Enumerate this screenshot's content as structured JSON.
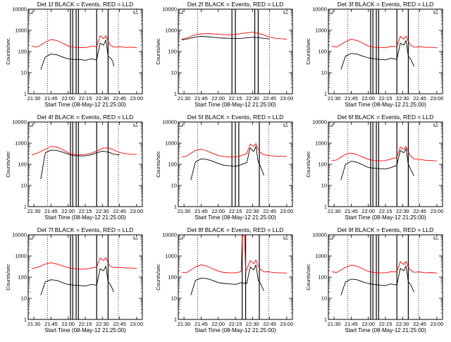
{
  "shared": {
    "xlabel": "Start Time (08-May-12 21:25:00)",
    "ylabel": "Counts/sec",
    "x_tick_labels": [
      "21:30",
      "21:45",
      "22:00",
      "22:15",
      "22:30",
      "22:45",
      "23:00"
    ],
    "y_tick_labels": [
      "1",
      "10",
      "100",
      "1000",
      "10000"
    ],
    "colors": {
      "events": "#000000",
      "lld": "#ff0000"
    }
  },
  "chart_data": [
    {
      "type": "line",
      "title": "Det 1f BLACK = Events, RED = LLD",
      "xlim": [
        "21:25",
        "23:05"
      ],
      "ylim": [
        1,
        10000
      ],
      "yscale": "log",
      "series": [
        {
          "name": "Events",
          "x": [
            "21:36",
            "21:40",
            "21:45",
            "21:50",
            "21:55",
            "22:00",
            "22:05",
            "22:10",
            "22:15",
            "22:20",
            "22:25",
            "22:28",
            "22:31",
            "22:33",
            "22:35",
            "22:37",
            "22:39",
            "22:40"
          ],
          "values": [
            14,
            55,
            75,
            70,
            55,
            45,
            42,
            42,
            38,
            45,
            40,
            250,
            200,
            350,
            60,
            50,
            35,
            20
          ]
        },
        {
          "name": "LLD",
          "x": [
            "21:28",
            "21:32",
            "21:36",
            "21:40",
            "21:45",
            "21:50",
            "21:55",
            "22:00",
            "22:05",
            "22:10",
            "22:15",
            "22:20",
            "22:25",
            "22:28",
            "22:31",
            "22:33",
            "22:35",
            "22:37",
            "22:40",
            "22:45",
            "22:50",
            "22:55",
            "23:00"
          ],
          "values": [
            180,
            160,
            200,
            280,
            370,
            330,
            250,
            180,
            160,
            155,
            150,
            175,
            170,
            550,
            400,
            560,
            300,
            200,
            160,
            170,
            155,
            160,
            150
          ]
        }
      ],
      "vlines_solid": [
        "22:02",
        "22:04",
        "22:07",
        "22:09",
        "22:25",
        "22:35"
      ],
      "vlines_dotted": [
        "21:42",
        "22:44"
      ]
    },
    {
      "type": "line",
      "title": "Det 2f BLACK = Events, RED = LLD",
      "xlim": [
        "21:25",
        "23:05"
      ],
      "ylim": [
        1,
        10000
      ],
      "yscale": "log",
      "series": [
        {
          "name": "Events",
          "x": [
            "21:28",
            "21:32",
            "21:36",
            "21:40",
            "21:45",
            "21:50",
            "21:55",
            "22:00",
            "22:05",
            "22:10",
            "22:15",
            "22:20",
            "22:25",
            "22:30",
            "22:35",
            "22:40",
            "22:45"
          ],
          "values": [
            350,
            380,
            430,
            480,
            520,
            500,
            470,
            440,
            430,
            420,
            410,
            420,
            440,
            470,
            450,
            420,
            390
          ]
        },
        {
          "name": "LLD",
          "x": [
            "21:28",
            "21:32",
            "21:36",
            "21:40",
            "21:45",
            "21:50",
            "21:55",
            "22:00",
            "22:05",
            "22:10",
            "22:15",
            "22:20",
            "22:25",
            "22:30",
            "22:35",
            "22:40",
            "22:45",
            "22:50",
            "22:55",
            "23:00"
          ],
          "values": [
            380,
            430,
            520,
            620,
            680,
            700,
            680,
            650,
            620,
            600,
            640,
            700,
            760,
            820,
            720,
            600,
            480,
            420,
            400,
            380
          ]
        }
      ],
      "vlines_solid": [
        "22:12",
        "22:15",
        "22:32",
        "22:35"
      ],
      "vlines_dotted": [
        "21:42",
        "22:45"
      ]
    },
    {
      "type": "line",
      "title": "Det 3f BLACK = Events, RED = LLD",
      "xlim": [
        "21:25",
        "23:05"
      ],
      "ylim": [
        1,
        10000
      ],
      "yscale": "log",
      "series": [
        {
          "name": "Events",
          "x": [
            "21:36",
            "21:40",
            "21:45",
            "21:50",
            "21:55",
            "22:00",
            "22:05",
            "22:10",
            "22:15",
            "22:20",
            "22:25",
            "22:28",
            "22:31",
            "22:33",
            "22:35",
            "22:37",
            "22:40"
          ],
          "values": [
            14,
            60,
            80,
            75,
            60,
            50,
            45,
            42,
            40,
            48,
            42,
            250,
            200,
            330,
            60,
            45,
            20
          ]
        },
        {
          "name": "LLD",
          "x": [
            "21:28",
            "21:32",
            "21:36",
            "21:40",
            "21:45",
            "21:50",
            "21:55",
            "22:00",
            "22:05",
            "22:10",
            "22:15",
            "22:20",
            "22:25",
            "22:28",
            "22:31",
            "22:33",
            "22:35",
            "22:37",
            "22:40",
            "22:45",
            "22:50",
            "22:55",
            "23:00"
          ],
          "values": [
            180,
            160,
            210,
            290,
            380,
            330,
            250,
            180,
            160,
            155,
            150,
            175,
            170,
            520,
            380,
            540,
            300,
            200,
            160,
            170,
            155,
            160,
            150
          ]
        }
      ],
      "vlines_solid": [
        "22:02",
        "22:04",
        "22:07",
        "22:09",
        "22:25",
        "22:35"
      ],
      "vlines_dotted": [
        "21:42",
        "22:44"
      ]
    },
    {
      "type": "line",
      "title": "Det 4f BLACK = Events, RED = LLD",
      "xlim": [
        "21:25",
        "23:05"
      ],
      "ylim": [
        1,
        10000
      ],
      "yscale": "log",
      "series": [
        {
          "name": "Events",
          "x": [
            "21:36",
            "21:40",
            "21:45",
            "21:50",
            "21:55",
            "22:00",
            "22:05",
            "22:10",
            "22:15",
            "22:20",
            "22:25",
            "22:30",
            "22:35",
            "22:40",
            "22:45"
          ],
          "values": [
            20,
            350,
            470,
            450,
            380,
            300,
            260,
            250,
            250,
            280,
            350,
            420,
            380,
            300,
            280
          ]
        },
        {
          "name": "LLD",
          "x": [
            "21:28",
            "21:32",
            "21:36",
            "21:40",
            "21:45",
            "21:50",
            "21:55",
            "22:00",
            "22:05",
            "22:10",
            "22:15",
            "22:20",
            "22:25",
            "22:30",
            "22:35",
            "22:40",
            "22:45",
            "22:50",
            "22:55",
            "23:00"
          ],
          "values": [
            280,
            320,
            400,
            520,
            700,
            650,
            500,
            350,
            290,
            280,
            290,
            330,
            420,
            580,
            600,
            480,
            360,
            320,
            300,
            290
          ]
        }
      ],
      "vlines_solid": [
        "22:02",
        "22:04",
        "22:07",
        "22:09",
        "22:25",
        "22:35"
      ],
      "vlines_dotted": [
        "21:42",
        "22:44"
      ]
    },
    {
      "type": "line",
      "title": "Det 5f BLACK = Events, RED = LLD",
      "xlim": [
        "21:25",
        "23:05"
      ],
      "ylim": [
        1,
        10000
      ],
      "yscale": "log",
      "series": [
        {
          "name": "Events",
          "x": [
            "21:36",
            "21:40",
            "21:45",
            "21:50",
            "21:55",
            "22:00",
            "22:05",
            "22:10",
            "22:15",
            "22:20",
            "22:25",
            "22:28",
            "22:31",
            "22:33",
            "22:35",
            "22:37",
            "22:40"
          ],
          "values": [
            18,
            130,
            180,
            170,
            140,
            110,
            90,
            85,
            80,
            95,
            120,
            600,
            400,
            700,
            130,
            80,
            30
          ]
        },
        {
          "name": "LLD",
          "x": [
            "21:28",
            "21:32",
            "21:36",
            "21:40",
            "21:45",
            "21:50",
            "21:55",
            "22:00",
            "22:05",
            "22:10",
            "22:15",
            "22:20",
            "22:25",
            "22:28",
            "22:31",
            "22:33",
            "22:35",
            "22:37",
            "22:40",
            "22:45",
            "22:50",
            "22:55",
            "23:00"
          ],
          "values": [
            220,
            240,
            330,
            450,
            520,
            430,
            330,
            260,
            230,
            220,
            220,
            260,
            320,
            900,
            700,
            950,
            500,
            350,
            280,
            260,
            240,
            240,
            230
          ]
        }
      ],
      "vlines_solid": [
        "22:12",
        "22:15",
        "22:18",
        "22:36"
      ],
      "vlines_dotted": [
        "21:42",
        "22:44"
      ]
    },
    {
      "type": "line",
      "title": "Det 6f BLACK = Events, RED = LLD",
      "xlim": [
        "21:25",
        "23:05"
      ],
      "ylim": [
        1,
        10000
      ],
      "yscale": "log",
      "series": [
        {
          "name": "Events",
          "x": [
            "21:36",
            "21:40",
            "21:45",
            "21:50",
            "21:55",
            "22:00",
            "22:05",
            "22:10",
            "22:15",
            "22:20",
            "22:25",
            "22:28",
            "22:31",
            "22:33",
            "22:35",
            "22:37",
            "22:40"
          ],
          "values": [
            18,
            100,
            140,
            125,
            95,
            70,
            65,
            62,
            60,
            70,
            90,
            450,
            350,
            550,
            100,
            60,
            28
          ]
        },
        {
          "name": "LLD",
          "x": [
            "21:28",
            "21:32",
            "21:36",
            "21:40",
            "21:45",
            "21:50",
            "21:55",
            "22:00",
            "22:05",
            "22:10",
            "22:15",
            "22:20",
            "22:25",
            "22:28",
            "22:31",
            "22:33",
            "22:35",
            "22:37",
            "22:40",
            "22:45",
            "22:50",
            "22:55",
            "23:00"
          ],
          "values": [
            150,
            160,
            220,
            300,
            340,
            290,
            220,
            170,
            150,
            145,
            150,
            180,
            210,
            650,
            500,
            700,
            380,
            250,
            180,
            170,
            155,
            150,
            145
          ]
        }
      ],
      "vlines_solid": [
        "22:02",
        "22:04",
        "22:07",
        "22:09",
        "22:25",
        "22:35"
      ],
      "vlines_dotted": [
        "21:42",
        "22:44"
      ]
    },
    {
      "type": "line",
      "title": "Det 7f BLACK = Events, RED = LLD",
      "xlim": [
        "21:25",
        "23:05"
      ],
      "ylim": [
        1,
        10000
      ],
      "yscale": "log",
      "series": [
        {
          "name": "Events",
          "x": [
            "21:36",
            "21:40",
            "21:45",
            "21:50",
            "21:55",
            "22:00",
            "22:05",
            "22:10",
            "22:15",
            "22:20",
            "22:25",
            "22:28",
            "22:31",
            "22:33",
            "22:35",
            "22:37",
            "22:40"
          ],
          "values": [
            14,
            60,
            75,
            70,
            55,
            45,
            42,
            40,
            38,
            45,
            42,
            250,
            200,
            330,
            60,
            45,
            20
          ]
        },
        {
          "name": "LLD",
          "x": [
            "21:28",
            "21:32",
            "21:36",
            "21:40",
            "21:45",
            "21:50",
            "21:55",
            "22:00",
            "22:05",
            "22:10",
            "22:15",
            "22:20",
            "22:25",
            "22:28",
            "22:31",
            "22:33",
            "22:35",
            "22:37",
            "22:40",
            "22:45",
            "22:50",
            "22:55",
            "23:00"
          ],
          "values": [
            250,
            280,
            330,
            420,
            480,
            420,
            340,
            280,
            250,
            240,
            240,
            270,
            300,
            800,
            600,
            850,
            450,
            330,
            280,
            290,
            270,
            270,
            260
          ]
        }
      ],
      "vlines_solid": [
        "22:02",
        "22:04",
        "22:07",
        "22:09",
        "22:25",
        "22:35"
      ],
      "vlines_dotted": [
        "21:42",
        "22:44"
      ]
    },
    {
      "type": "line",
      "title": "Det 8f BLACK = Events, RED = LLD",
      "xlim": [
        "21:25",
        "23:05"
      ],
      "ylim": [
        1,
        10000
      ],
      "yscale": "log",
      "series": [
        {
          "name": "Events",
          "x": [
            "21:36",
            "21:40",
            "21:45",
            "21:50",
            "21:55",
            "22:00",
            "22:05",
            "22:10",
            "22:15",
            "22:20",
            "22:25",
            "22:28",
            "22:31",
            "22:33",
            "22:35",
            "22:37",
            "22:40"
          ],
          "values": [
            14,
            70,
            90,
            85,
            70,
            55,
            50,
            48,
            45,
            55,
            50,
            300,
            220,
            380,
            70,
            50,
            22
          ]
        },
        {
          "name": "LLD",
          "x": [
            "21:28",
            "21:32",
            "21:36",
            "21:40",
            "21:45",
            "21:50",
            "21:55",
            "22:00",
            "22:05",
            "22:10",
            "22:15",
            "22:20",
            "22:21",
            "22:23",
            "22:24",
            "22:28",
            "22:31",
            "22:33",
            "22:35",
            "22:37",
            "22:40",
            "22:45",
            "22:50",
            "22:55",
            "23:00"
          ],
          "values": [
            170,
            160,
            220,
            300,
            380,
            330,
            250,
            190,
            165,
            160,
            160,
            180,
            9000,
            9000,
            180,
            600,
            420,
            650,
            330,
            230,
            180,
            175,
            160,
            160,
            155
          ]
        }
      ],
      "vlines_solid": [
        "22:21",
        "22:24",
        "22:36"
      ],
      "vlines_dotted": [
        "21:42",
        "22:44"
      ]
    },
    {
      "type": "line",
      "title": "Det 9f BLACK = Events, RED = LLD",
      "xlim": [
        "21:25",
        "23:05"
      ],
      "ylim": [
        1,
        10000
      ],
      "yscale": "log",
      "series": [
        {
          "name": "Events",
          "x": [
            "21:36",
            "21:40",
            "21:45",
            "21:50",
            "21:55",
            "22:00",
            "22:05",
            "22:10",
            "22:15",
            "22:20",
            "22:25",
            "22:28",
            "22:31",
            "22:33",
            "22:35",
            "22:37",
            "22:40"
          ],
          "values": [
            14,
            60,
            80,
            75,
            60,
            50,
            45,
            42,
            40,
            48,
            42,
            260,
            200,
            340,
            60,
            45,
            20
          ]
        },
        {
          "name": "LLD",
          "x": [
            "21:28",
            "21:32",
            "21:36",
            "21:40",
            "21:45",
            "21:50",
            "21:55",
            "22:00",
            "22:05",
            "22:10",
            "22:15",
            "22:20",
            "22:25",
            "22:28",
            "22:31",
            "22:33",
            "22:35",
            "22:37",
            "22:40",
            "22:45",
            "22:50",
            "22:55",
            "23:00"
          ],
          "values": [
            180,
            165,
            215,
            290,
            370,
            330,
            250,
            185,
            165,
            160,
            160,
            180,
            175,
            540,
            390,
            560,
            300,
            210,
            170,
            175,
            160,
            165,
            155
          ]
        }
      ],
      "vlines_solid": [
        "22:02",
        "22:04",
        "22:07",
        "22:09",
        "22:25",
        "22:35"
      ],
      "vlines_dotted": [
        "21:42",
        "22:44"
      ]
    }
  ]
}
